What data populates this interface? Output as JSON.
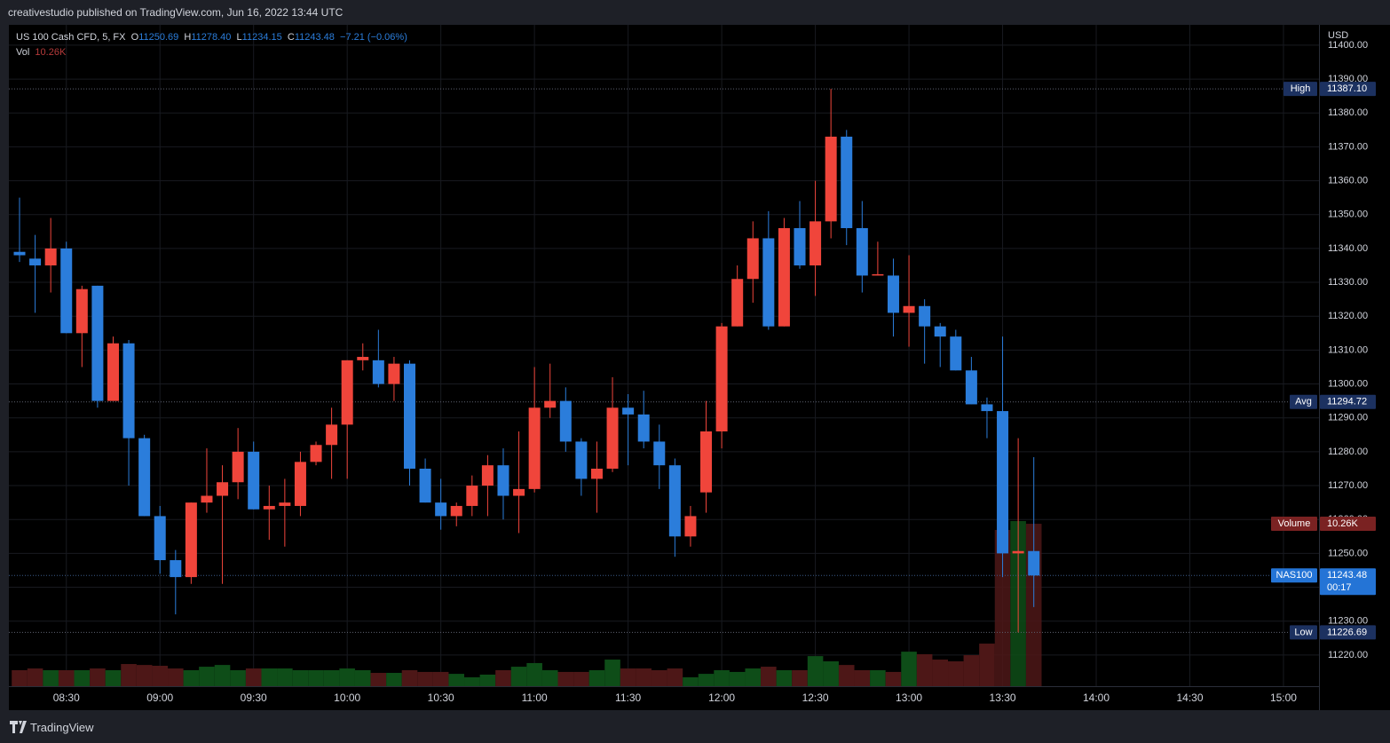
{
  "chart_data": {
    "type": "candlestick",
    "published": "creativestudio published on TradingView.com, Jun 16, 2022 13:44 UTC",
    "symbol": "US 100 Cash CFD, 5, FX",
    "ohlc_letters": [
      "O",
      "H",
      "L",
      "C"
    ],
    "ohlc_texts": [
      "11250.69",
      "11278.40",
      "11234.15",
      "11243.48"
    ],
    "change": "−7.21 (−0.06%)",
    "volume_title": "Vol",
    "volume_text": "10.26K",
    "currency": "USD",
    "footer": "TradingView",
    "categories": [
      null,
      null,
      null,
      "08:30",
      null,
      null,
      null,
      null,
      null,
      "09:00",
      null,
      null,
      null,
      null,
      null,
      "09:30",
      null,
      null,
      null,
      null,
      null,
      "10:00",
      null,
      null,
      null,
      null,
      null,
      "10:30",
      null,
      null,
      null,
      null,
      null,
      "11:00",
      null,
      null,
      null,
      null,
      null,
      "11:30",
      null,
      null,
      null,
      null,
      null,
      "12:00",
      null,
      null,
      null,
      null,
      null,
      "12:30",
      null,
      null,
      null,
      null,
      null,
      "13:00",
      null,
      null,
      null,
      null,
      null,
      "13:30",
      null,
      null,
      null,
      null,
      null,
      "14:00",
      null,
      null,
      null,
      null,
      null,
      "14:30",
      null,
      null,
      null,
      null,
      null,
      "15:00",
      null
    ],
    "open": [
      11339,
      11337,
      11335,
      11340,
      11315,
      11329,
      11295,
      11312,
      11284,
      11261,
      11248,
      11243,
      11265,
      11267,
      11271,
      11280,
      11263,
      11264,
      11264,
      11277,
      11282,
      11288,
      11307,
      11307,
      11300,
      11306,
      11275,
      11265,
      11261,
      11264,
      11270,
      11276,
      11267,
      11269,
      11293,
      11295,
      11283,
      11272,
      11275,
      11293,
      11291,
      11283,
      11276,
      11255,
      11268,
      11286,
      11317,
      11331,
      11343,
      11317,
      11346,
      11335,
      11348,
      11373,
      11346,
      11332,
      11332,
      11321,
      11323,
      11317,
      11314,
      11304,
      11294,
      11292,
      11250,
      11250.69,
      null,
      null,
      null,
      null,
      null,
      null,
      null,
      null,
      null,
      null,
      null,
      null,
      null,
      null,
      null,
      null,
      null
    ],
    "high": [
      11355,
      11344,
      11349,
      11342,
      11329,
      11329,
      11314,
      11313,
      11285,
      11264,
      11251,
      11265,
      11281,
      11276,
      11287,
      11283,
      11270,
      11272,
      11280,
      11283,
      11293,
      11307,
      11312,
      11316,
      11308,
      11307,
      11278,
      11272,
      11265,
      11273,
      11279,
      11281,
      11286,
      11305,
      11306,
      11299,
      11284,
      11283,
      11302,
      11297,
      11298,
      11288,
      11278,
      11264,
      11295,
      11318,
      11335,
      11348,
      11351,
      11349,
      11354,
      11360,
      11387.1,
      11375,
      11354,
      11342,
      11337,
      11338,
      11325,
      11318,
      11316,
      11308,
      11296,
      11314,
      11284,
      11278.4,
      null,
      null,
      null,
      null,
      null,
      null,
      null,
      null,
      null,
      null,
      null,
      null,
      null,
      null,
      null,
      null,
      null
    ],
    "low": [
      11336,
      11321,
      11327,
      11315,
      11305,
      11293,
      11295,
      11270,
      11261,
      11244,
      11232,
      11241,
      11262,
      11241,
      11266,
      11263,
      11254,
      11252,
      11261,
      11276,
      11272,
      11272,
      11304,
      11299,
      11295,
      11270,
      11265,
      11257,
      11258,
      11261,
      11261,
      11260,
      11256,
      11268,
      11290,
      11280,
      11267,
      11262,
      11274,
      11276,
      11281,
      11269,
      11249,
      11252,
      11262,
      11281,
      11317,
      11324,
      11316,
      11317,
      11334,
      11326,
      11343,
      11341,
      11327,
      11332,
      11314,
      11311,
      11306,
      11305,
      11304,
      11294,
      11284,
      11243,
      11226.69,
      11234.15,
      null,
      null,
      null,
      null,
      null,
      null,
      null,
      null,
      null,
      null,
      null,
      null,
      null,
      null,
      null,
      null,
      null
    ],
    "close": [
      11338,
      11335,
      11340,
      11315,
      11328,
      11295,
      11312,
      11284,
      11261,
      11248,
      11243,
      11265,
      11267,
      11271,
      11280,
      11263,
      11264,
      11265,
      11277,
      11282,
      11288,
      11307,
      11308,
      11300,
      11306,
      11275,
      11265,
      11261,
      11264,
      11270,
      11276,
      11267,
      11269,
      11293,
      11295,
      11283,
      11272,
      11275,
      11293,
      11291,
      11283,
      11276,
      11255,
      11261,
      11286,
      11317,
      11331,
      11343,
      11317,
      11346,
      11335,
      11348,
      11373,
      11346,
      11332,
      11332.4,
      11321,
      11323,
      11317,
      11314,
      11304,
      11294,
      11292,
      11250,
      11250.69,
      11243.48,
      null,
      null,
      null,
      null,
      null,
      null,
      null,
      null,
      null,
      null,
      null,
      null,
      null,
      null,
      null,
      null,
      null
    ],
    "volume": [
      1.01,
      1.12,
      1.01,
      1.01,
      1.01,
      1.12,
      1.01,
      1.4,
      1.34,
      1.29,
      1.12,
      1.01,
      1.23,
      1.34,
      1.01,
      1.12,
      1.12,
      1.12,
      1.01,
      1.01,
      1.01,
      1.12,
      1.01,
      0.84,
      0.84,
      1.01,
      0.9,
      0.9,
      0.78,
      0.56,
      0.73,
      1.01,
      1.23,
      1.46,
      1.01,
      0.9,
      0.9,
      1.01,
      1.68,
      1.12,
      1.12,
      1.01,
      1.12,
      0.56,
      0.78,
      1.01,
      0.9,
      1.12,
      1.23,
      1.01,
      1.01,
      1.9,
      1.57,
      1.34,
      1.01,
      1.01,
      0.9,
      2.18,
      2.02,
      1.68,
      1.57,
      1.96,
      2.69,
      9.87,
      10.43,
      10.26,
      null,
      null,
      null,
      null,
      null,
      null,
      null,
      null,
      null,
      null,
      null,
      null,
      null,
      null,
      null,
      null,
      null
    ],
    "up_color": "#f0453b",
    "down_color": "#2b7ddb",
    "volume_up_color": "#0e4d18",
    "volume_down_color": "#4d1717",
    "ylim": [
      11210.8,
      11406.0
    ],
    "yticks": [
      {
        "value": 11220,
        "label": "11220.00"
      },
      {
        "value": 11230,
        "label": "11230.00"
      },
      {
        "value": 11240,
        "label": "11240.00"
      },
      {
        "value": 11250,
        "label": "11250.00"
      },
      {
        "value": 11260,
        "label": "11260.00"
      },
      {
        "value": 11270,
        "label": "11270.00"
      },
      {
        "value": 11280,
        "label": "11280.00"
      },
      {
        "value": 11290,
        "label": "11290.00"
      },
      {
        "value": 11300,
        "label": "11300.00"
      },
      {
        "value": 11310,
        "label": "11310.00"
      },
      {
        "value": 11320,
        "label": "11320.00"
      },
      {
        "value": 11330,
        "label": "11330.00"
      },
      {
        "value": 11340,
        "label": "11340.00"
      },
      {
        "value": 11350,
        "label": "11350.00"
      },
      {
        "value": 11360,
        "label": "11360.00"
      },
      {
        "value": 11370,
        "label": "11370.00"
      },
      {
        "value": 11380,
        "label": "11380.00"
      },
      {
        "value": 11390,
        "label": "11390.00"
      },
      {
        "value": 11400,
        "label": "11400.00"
      }
    ],
    "grid": true,
    "levels": [
      {
        "name": "High",
        "value": 11387.1,
        "label": "11387.10",
        "color": "#1c3160"
      },
      {
        "name": "Avg",
        "value": 11294.72,
        "label": "11294.72",
        "color": "#1c3160"
      },
      {
        "name": "NAS100",
        "value": 11243.48,
        "label": "11243.48",
        "extra": "00:17",
        "color": "#2474d6"
      },
      {
        "name": "Low",
        "value": 11226.69,
        "label": "11226.69",
        "color": "#1c3160"
      }
    ],
    "volume_marker": {
      "name": "Volume",
      "label": "10.26K",
      "color": "#7a2222"
    }
  }
}
